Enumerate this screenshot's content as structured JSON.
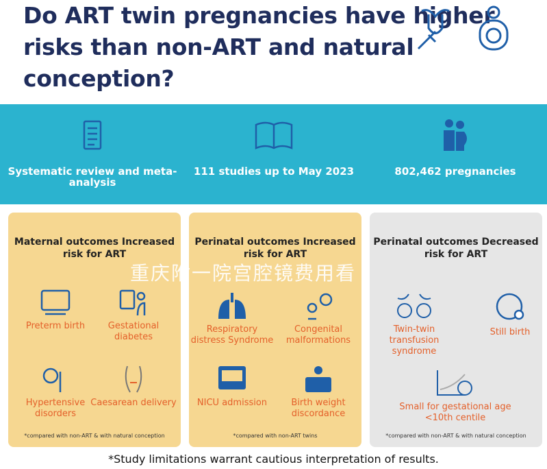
{
  "title": "Do ART twin pregnancies have higher risks than non-ART and natural conception?",
  "stats": [
    {
      "icon": "clipboard-checklist-icon",
      "label": "Systematic review and meta-analysis"
    },
    {
      "icon": "open-book-icon",
      "label": "111 studies up to May 2023"
    },
    {
      "icon": "pregnant-women-icon",
      "label": "802,462 pregnancies"
    }
  ],
  "panels": [
    {
      "heading": "Maternal outcomes Increased risk for ART",
      "items": [
        "Preterm birth",
        "Gestational diabetes",
        "Hypertensive disorders",
        "Caesarean delivery"
      ],
      "note": "*compared with non-ART & with natural conception"
    },
    {
      "heading": "Perinatal outcomes Increased risk for ART",
      "items": [
        "Respiratory distress Syndrome",
        "Congenital malformations",
        "NICU admission",
        "Birth weight discordance"
      ],
      "note": "*compared with non-ART twins"
    },
    {
      "heading": "Perinatal outcomes Decreased risk for ART",
      "items": [
        "Twin-twin transfusion syndrome",
        "Still birth",
        "Small for gestational age <10th centile"
      ],
      "note": "*compared with non-ART & with natural conception"
    }
  ],
  "footnote": "*Study limitations warrant cautious interpretation of results.",
  "watermark": "重庆附一院宫腔镜费用看",
  "colors": {
    "title": "#1f2d5c",
    "band": "#2bb3cf",
    "panel_yellow": "#f6d791",
    "panel_gray": "#e6e6e6",
    "item_text": "#e4602a"
  }
}
